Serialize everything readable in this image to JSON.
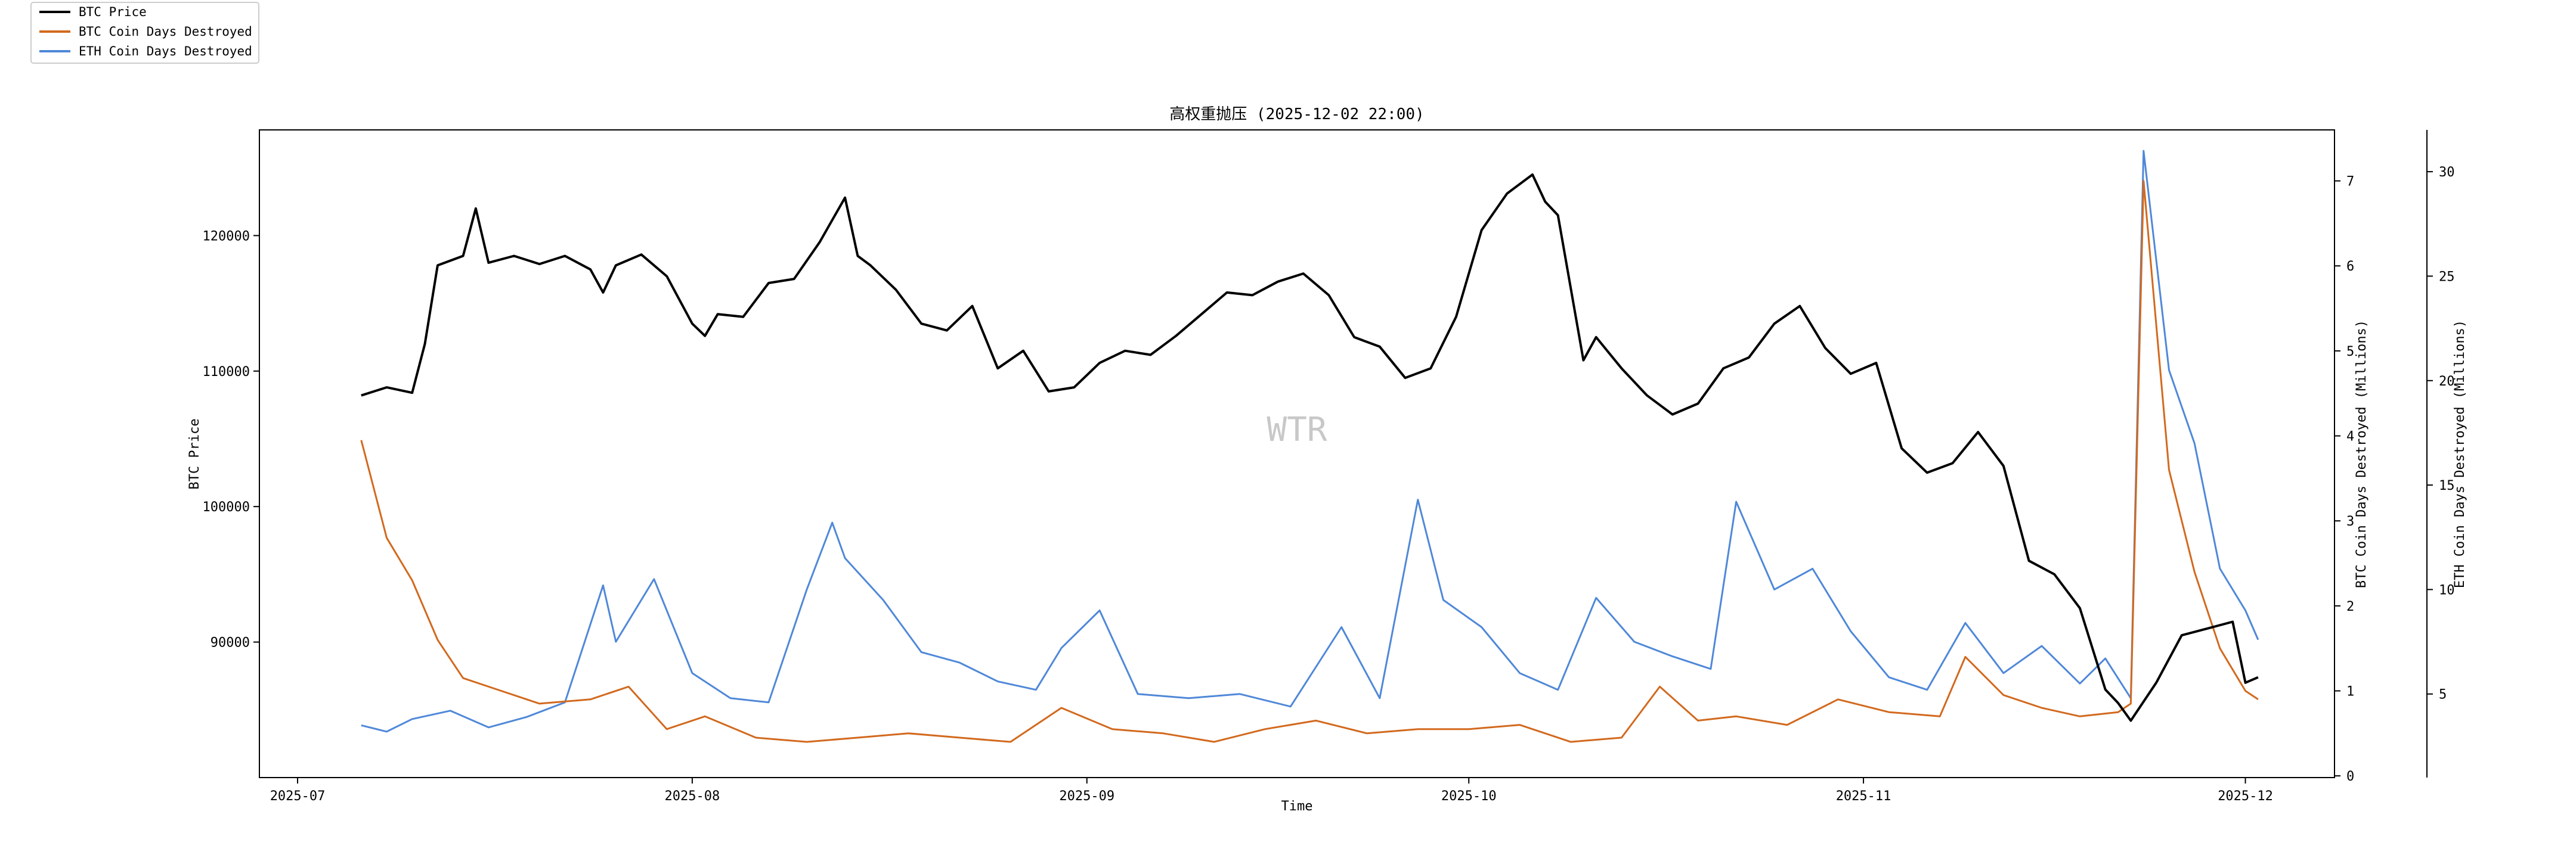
{
  "chart_data": {
    "type": "line",
    "title": "高权重抛压 (2025-12-02 22:00)",
    "xlabel": "Time",
    "ylabel_left": "BTC Price",
    "ylabel_right1": "BTC Coin Days Destroyed (Millions)",
    "ylabel_right2": "ETH Coin Days Destroyed (Millions)",
    "watermark": "WTR",
    "x_ticks": [
      "2025-07",
      "2025-08",
      "2025-09",
      "2025-10",
      "2025-11",
      "2025-12"
    ],
    "x_range": [
      "2025-06-28",
      "2025-12-08"
    ],
    "y_left": {
      "ticks": [
        90000,
        100000,
        110000,
        120000
      ],
      "range": [
        80000,
        127800
      ]
    },
    "y_right1": {
      "ticks": [
        0,
        1,
        2,
        3,
        4,
        5,
        6,
        7
      ],
      "range": [
        -0.02,
        7.6
      ]
    },
    "y_right2": {
      "ticks": [
        5,
        10,
        15,
        20,
        25,
        30
      ],
      "range": [
        1.0,
        32.0
      ]
    },
    "legend": {
      "placement": "top-left"
    },
    "colors": {
      "btc_price": "#000000",
      "btc_cdd": "#d2691e",
      "eth_cdd": "#4f88d8"
    },
    "series": [
      {
        "name": "BTC Price",
        "axis": "left",
        "x": [
          "2025-07-06",
          "2025-07-08",
          "2025-07-10",
          "2025-07-11",
          "2025-07-12",
          "2025-07-14",
          "2025-07-15",
          "2025-07-16",
          "2025-07-18",
          "2025-07-20",
          "2025-07-22",
          "2025-07-24",
          "2025-07-25",
          "2025-07-26",
          "2025-07-28",
          "2025-07-30",
          "2025-08-01",
          "2025-08-02",
          "2025-08-03",
          "2025-08-05",
          "2025-08-07",
          "2025-08-09",
          "2025-08-11",
          "2025-08-13",
          "2025-08-14",
          "2025-08-15",
          "2025-08-17",
          "2025-08-19",
          "2025-08-21",
          "2025-08-23",
          "2025-08-25",
          "2025-08-27",
          "2025-08-29",
          "2025-08-31",
          "2025-09-02",
          "2025-09-04",
          "2025-09-06",
          "2025-09-08",
          "2025-09-10",
          "2025-09-12",
          "2025-09-14",
          "2025-09-16",
          "2025-09-18",
          "2025-09-20",
          "2025-09-22",
          "2025-09-24",
          "2025-09-26",
          "2025-09-28",
          "2025-09-30",
          "2025-10-02",
          "2025-10-04",
          "2025-10-06",
          "2025-10-07",
          "2025-10-08",
          "2025-10-10",
          "2025-10-11",
          "2025-10-13",
          "2025-10-15",
          "2025-10-17",
          "2025-10-19",
          "2025-10-21",
          "2025-10-23",
          "2025-10-25",
          "2025-10-27",
          "2025-10-29",
          "2025-10-31",
          "2025-11-02",
          "2025-11-04",
          "2025-11-06",
          "2025-11-08",
          "2025-11-10",
          "2025-11-12",
          "2025-11-14",
          "2025-11-16",
          "2025-11-18",
          "2025-11-20",
          "2025-11-21",
          "2025-11-22",
          "2025-11-24",
          "2025-11-26",
          "2025-11-28",
          "2025-11-30",
          "2025-12-01",
          "2025-12-02"
        ],
        "values": [
          108200,
          108800,
          108400,
          112000,
          117800,
          118500,
          122000,
          118000,
          118500,
          117900,
          118500,
          117500,
          115800,
          117800,
          118600,
          117000,
          113500,
          112600,
          114200,
          114000,
          116500,
          116800,
          119500,
          122800,
          118500,
          117800,
          116000,
          113500,
          113000,
          114800,
          110200,
          111500,
          108500,
          108800,
          110600,
          111500,
          111200,
          112600,
          114200,
          115800,
          115600,
          116600,
          117200,
          115600,
          112500,
          111800,
          109500,
          110200,
          114000,
          120400,
          123100,
          124500,
          122500,
          121500,
          110800,
          112500,
          110200,
          108200,
          106800,
          107600,
          110200,
          111000,
          113500,
          114800,
          111700,
          109800,
          110600,
          104300,
          102500,
          103200,
          105500,
          103000,
          96000,
          95000,
          92500,
          86500,
          85500,
          84200,
          87000,
          90500,
          91000,
          91500,
          87000,
          87400
        ]
      },
      {
        "name": "BTC Coin Days Destroyed",
        "axis": "right1",
        "x": [
          "2025-07-06",
          "2025-07-08",
          "2025-07-10",
          "2025-07-12",
          "2025-07-14",
          "2025-07-17",
          "2025-07-20",
          "2025-07-24",
          "2025-07-27",
          "2025-07-30",
          "2025-08-02",
          "2025-08-06",
          "2025-08-10",
          "2025-08-14",
          "2025-08-18",
          "2025-08-22",
          "2025-08-26",
          "2025-08-30",
          "2025-09-03",
          "2025-09-07",
          "2025-09-11",
          "2025-09-15",
          "2025-09-19",
          "2025-09-23",
          "2025-09-27",
          "2025-10-01",
          "2025-10-05",
          "2025-10-09",
          "2025-10-13",
          "2025-10-16",
          "2025-10-19",
          "2025-10-22",
          "2025-10-26",
          "2025-10-30",
          "2025-11-03",
          "2025-11-07",
          "2025-11-09",
          "2025-11-12",
          "2025-11-15",
          "2025-11-18",
          "2025-11-21",
          "2025-11-22",
          "2025-11-23",
          "2025-11-25",
          "2025-11-27",
          "2025-11-29",
          "2025-12-01",
          "2025-12-02"
        ],
        "values": [
          3.95,
          2.8,
          2.3,
          1.6,
          1.15,
          1.0,
          0.85,
          0.9,
          1.05,
          0.55,
          0.7,
          0.45,
          0.4,
          0.45,
          0.5,
          0.45,
          0.4,
          0.8,
          0.55,
          0.5,
          0.4,
          0.55,
          0.65,
          0.5,
          0.55,
          0.55,
          0.6,
          0.4,
          0.45,
          1.05,
          0.65,
          0.7,
          0.6,
          0.9,
          0.75,
          0.7,
          1.4,
          0.95,
          0.8,
          0.7,
          0.75,
          0.85,
          7.0,
          3.6,
          2.4,
          1.5,
          1.0,
          0.9
        ]
      },
      {
        "name": "ETH Coin Days Destroyed",
        "axis": "right2",
        "x": [
          "2025-07-06",
          "2025-07-08",
          "2025-07-10",
          "2025-07-13",
          "2025-07-16",
          "2025-07-19",
          "2025-07-22",
          "2025-07-25",
          "2025-07-26",
          "2025-07-29",
          "2025-08-01",
          "2025-08-04",
          "2025-08-07",
          "2025-08-10",
          "2025-08-12",
          "2025-08-13",
          "2025-08-16",
          "2025-08-19",
          "2025-08-22",
          "2025-08-25",
          "2025-08-28",
          "2025-08-30",
          "2025-09-02",
          "2025-09-05",
          "2025-09-09",
          "2025-09-13",
          "2025-09-17",
          "2025-09-21",
          "2025-09-24",
          "2025-09-27",
          "2025-09-29",
          "2025-10-02",
          "2025-10-05",
          "2025-10-08",
          "2025-10-11",
          "2025-10-14",
          "2025-10-17",
          "2025-10-20",
          "2025-10-22",
          "2025-10-25",
          "2025-10-28",
          "2025-10-31",
          "2025-11-03",
          "2025-11-06",
          "2025-11-09",
          "2025-11-12",
          "2025-11-15",
          "2025-11-18",
          "2025-11-20",
          "2025-11-22",
          "2025-11-23",
          "2025-11-25",
          "2025-11-27",
          "2025-11-29",
          "2025-12-01",
          "2025-12-02"
        ],
        "values": [
          3.5,
          3.2,
          3.8,
          4.2,
          3.4,
          3.9,
          4.6,
          10.2,
          7.5,
          10.5,
          6.0,
          4.8,
          4.6,
          10.0,
          13.2,
          11.5,
          9.5,
          7.0,
          6.5,
          5.6,
          5.2,
          7.2,
          9.0,
          5.0,
          4.8,
          5.0,
          4.4,
          8.2,
          4.8,
          14.3,
          9.5,
          8.2,
          6.0,
          5.2,
          9.6,
          7.5,
          6.8,
          6.2,
          14.2,
          10.0,
          11.0,
          8.0,
          5.8,
          5.2,
          8.4,
          6.0,
          7.3,
          5.5,
          6.7,
          4.8,
          31.0,
          20.5,
          17.0,
          11.0,
          9.0,
          7.6
        ]
      }
    ]
  }
}
